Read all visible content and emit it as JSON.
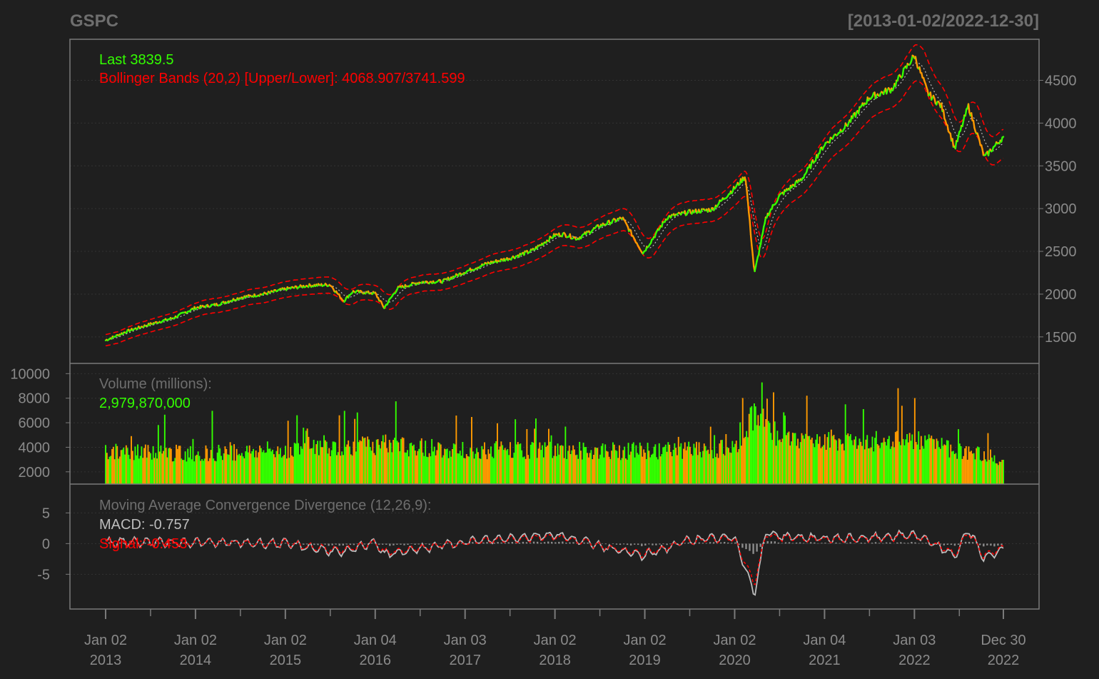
{
  "header": {
    "symbol": "GSPC",
    "range": "[2013-01-02/2022-12-30]"
  },
  "colors": {
    "background": "#1f1f1f",
    "frame": "#7a7a7a",
    "grid": "#333333",
    "text": "#8a8a8a",
    "up": "#33ff00",
    "down": "#ff9900",
    "bbands": "#ff0000",
    "ma": "#bbbbbb",
    "macd": "#bdbdbd",
    "signal": "#ff0000",
    "hist": "#8c8c8c"
  },
  "price_panel": {
    "last_label": "Last 3839.5",
    "bb_label": "Bollinger Bands (20,2) [Upper/Lower]: 4068.907/3741.599"
  },
  "volume_panel": {
    "title": "Volume (millions):",
    "value": "2,979,870,000"
  },
  "macd_panel": {
    "title": "Moving Average Convergence Divergence (12,26,9):",
    "macd_label": "MACD: -0.757",
    "signal_label": "Signal: -0.453"
  },
  "chart_data": {
    "type": "line",
    "title": "GSPC",
    "date_range": "[2013-01-02/2022-12-30]",
    "x_ticks": [
      {
        "top": "Jan 02",
        "bottom": "2013"
      },
      {
        "top": "Jan 02",
        "bottom": "2014"
      },
      {
        "top": "Jan 02",
        "bottom": "2015"
      },
      {
        "top": "Jan 04",
        "bottom": "2016"
      },
      {
        "top": "Jan 03",
        "bottom": "2017"
      },
      {
        "top": "Jan 02",
        "bottom": "2018"
      },
      {
        "top": "Jan 02",
        "bottom": "2019"
      },
      {
        "top": "Jan 02",
        "bottom": "2020"
      },
      {
        "top": "Jan 04",
        "bottom": "2021"
      },
      {
        "top": "Jan 03",
        "bottom": "2022"
      },
      {
        "top": "Dec 30",
        "bottom": "2022"
      }
    ],
    "price": {
      "ylim": [
        1340,
        4880
      ],
      "yticks": [
        1500,
        2000,
        2500,
        3000,
        3500,
        4000,
        4500
      ],
      "x": [
        2013.0,
        2013.25,
        2013.5,
        2013.75,
        2014.0,
        2014.25,
        2014.5,
        2014.75,
        2015.0,
        2015.25,
        2015.5,
        2015.65,
        2015.75,
        2016.0,
        2016.1,
        2016.25,
        2016.5,
        2016.75,
        2017.0,
        2017.25,
        2017.5,
        2017.75,
        2018.0,
        2018.1,
        2018.25,
        2018.5,
        2018.75,
        2018.98,
        2019.25,
        2019.5,
        2019.75,
        2020.0,
        2020.12,
        2020.22,
        2020.35,
        2020.5,
        2020.75,
        2021.0,
        2021.25,
        2021.5,
        2021.75,
        2022.0,
        2022.15,
        2022.3,
        2022.45,
        2022.6,
        2022.78,
        2022.99
      ],
      "close": [
        1460,
        1570,
        1650,
        1720,
        1840,
        1880,
        1960,
        2000,
        2060,
        2100,
        2110,
        1920,
        2030,
        2010,
        1840,
        2070,
        2140,
        2150,
        2260,
        2360,
        2420,
        2510,
        2690,
        2700,
        2650,
        2800,
        2890,
        2480,
        2900,
        2960,
        2990,
        3240,
        3380,
        2240,
        2900,
        3150,
        3350,
        3750,
        3980,
        4300,
        4400,
        4790,
        4350,
        4200,
        3700,
        4200,
        3600,
        3840
      ],
      "bb_upper": 4068.907,
      "bb_lower": 3741.599,
      "last": 3839.5
    },
    "volume": {
      "ylabel": "Volume (millions)",
      "ylim": [
        1000,
        10600
      ],
      "yticks": [
        2000,
        4000,
        6000,
        8000,
        10000
      ],
      "x": [
        2013.0,
        2014.0,
        2015.0,
        2016.0,
        2017.0,
        2018.0,
        2019.0,
        2020.0,
        2020.2,
        2020.5,
        2021.0,
        2022.0,
        2022.99
      ],
      "values": [
        3600,
        3500,
        3800,
        4200,
        3800,
        3700,
        3700,
        3900,
        6700,
        4800,
        4600,
        4500,
        2979.87
      ]
    },
    "macd": {
      "ylim": [
        -9.5,
        9
      ],
      "yticks": [
        -5,
        0,
        5
      ],
      "x": [
        2013.0,
        2014.0,
        2015.0,
        2015.65,
        2016.0,
        2016.1,
        2017.0,
        2018.0,
        2018.98,
        2019.5,
        2020.0,
        2020.22,
        2020.35,
        2020.5,
        2021.0,
        2021.5,
        2022.0,
        2022.3,
        2022.45,
        2022.6,
        2022.78,
        2022.99
      ],
      "macd": [
        0.3,
        0.2,
        0.0,
        -1.5,
        0.4,
        -1.8,
        0.3,
        1.5,
        -2.0,
        0.6,
        1.0,
        -8.2,
        2.0,
        1.2,
        0.8,
        0.9,
        1.5,
        -0.8,
        -2.0,
        2.3,
        -2.5,
        -0.757
      ],
      "signal": [
        0.2,
        0.2,
        0.0,
        -1.2,
        0.3,
        -1.5,
        0.2,
        1.2,
        -1.7,
        0.5,
        0.8,
        -6.5,
        1.5,
        1.0,
        0.7,
        0.8,
        1.3,
        -0.6,
        -1.7,
        1.9,
        -2.1,
        -0.453
      ]
    }
  }
}
